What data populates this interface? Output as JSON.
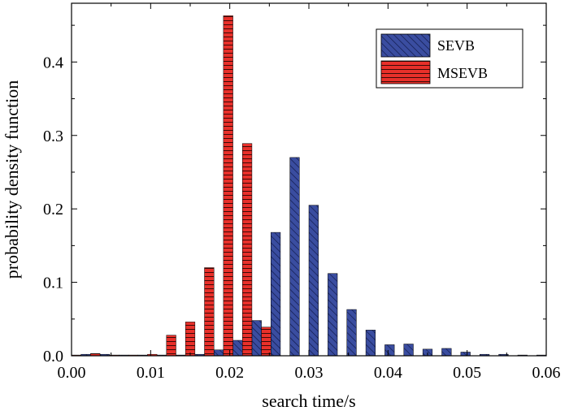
{
  "chart_data": {
    "type": "bar",
    "xlabel": "search time/s",
    "ylabel": "probability density function",
    "xlim": [
      0,
      0.06
    ],
    "ylim": [
      0,
      0.48
    ],
    "xticks": [
      "0.00",
      "0.01",
      "0.02",
      "0.03",
      "0.04",
      "0.05",
      "0.06"
    ],
    "yticks": [
      "0.0",
      "0.1",
      "0.2",
      "0.3",
      "0.4"
    ],
    "bin_width": 0.0024,
    "legend_position": "top-right",
    "series": [
      {
        "name": "SEVB",
        "color": "#3a4da0",
        "pattern": "diagonal",
        "x": [
          0.0012,
          0.0036,
          0.006,
          0.0084,
          0.0108,
          0.0132,
          0.0156,
          0.018,
          0.0204,
          0.0228,
          0.0252,
          0.0276,
          0.03,
          0.0324,
          0.0348,
          0.0372,
          0.0396,
          0.042,
          0.0444,
          0.0468,
          0.0492,
          0.0516,
          0.054,
          0.0564,
          0.0588
        ],
        "values": [
          0.002,
          0.002,
          0.001,
          0.001,
          0.001,
          0.001,
          0.002,
          0.008,
          0.021,
          0.048,
          0.168,
          0.27,
          0.205,
          0.112,
          0.063,
          0.035,
          0.015,
          0.016,
          0.009,
          0.01,
          0.005,
          0.002,
          0.002,
          0.001,
          0.001
        ]
      },
      {
        "name": "MSEVB",
        "color": "#e8302a",
        "pattern": "horizontal",
        "x": [
          0.0012,
          0.0036,
          0.006,
          0.0084,
          0.0108,
          0.0132,
          0.0156,
          0.018,
          0.0204,
          0.0228,
          0.0252
        ],
        "values": [
          0.001,
          0.003,
          0.001,
          0.001,
          0.002,
          0.028,
          0.046,
          0.12,
          0.463,
          0.289,
          0.039
        ]
      }
    ]
  }
}
